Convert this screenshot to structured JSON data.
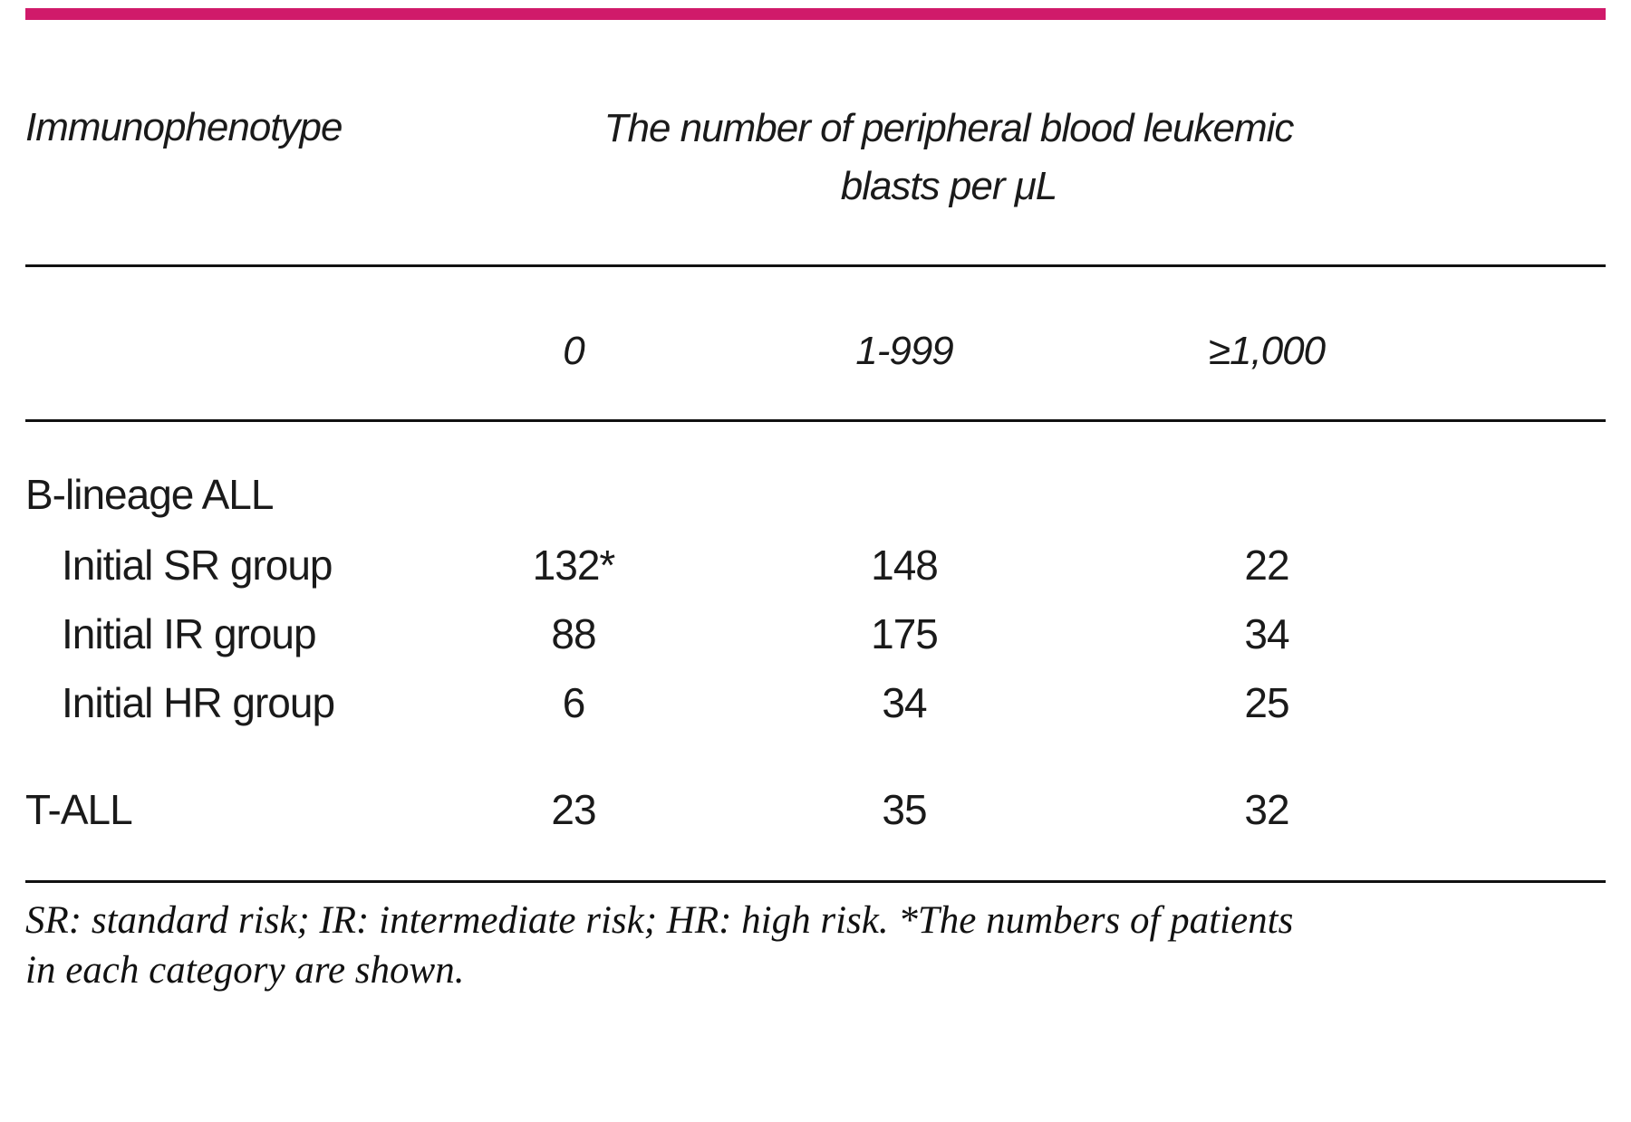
{
  "colors": {
    "accent": "#d01a6a",
    "rule": "#111111"
  },
  "table": {
    "row_header": "Immunophenotype",
    "span_header_line1": "The number of peripheral blood leukemic",
    "span_header_line2": "blasts per μL",
    "columns": [
      "0",
      "1-999",
      "≥1,000"
    ],
    "rows": [
      {
        "label": "B-lineage ALL",
        "values": [
          "",
          "",
          ""
        ]
      },
      {
        "label": "Initial SR group",
        "values": [
          "132*",
          "148",
          "22"
        ]
      },
      {
        "label": "Initial IR group",
        "values": [
          "88",
          "175",
          "34"
        ]
      },
      {
        "label": "Initial HR group",
        "values": [
          "6",
          "34",
          "25"
        ]
      },
      {
        "label": "T-ALL",
        "values": [
          "23",
          "35",
          "32"
        ]
      }
    ]
  },
  "footnote": {
    "line1": "SR: standard risk; IR: intermediate risk; HR: high risk. *The numbers of patients",
    "line2": "in each category are shown."
  }
}
